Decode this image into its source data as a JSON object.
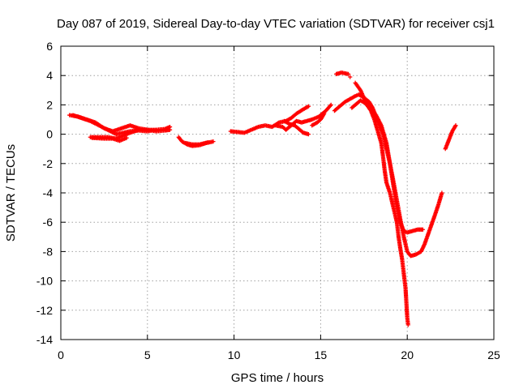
{
  "chart_data": {
    "type": "scatter",
    "title": "Day 087 of 2019, Sidereal Day-to-day VTEC variation (SDTVAR) for receiver csj1",
    "xlabel": "GPS time / hours",
    "ylabel": "SDTVAR / TECUs",
    "xlim": [
      0,
      25
    ],
    "ylim": [
      -14,
      6
    ],
    "xticks": [
      "0",
      "5",
      "10",
      "15",
      "20",
      "25"
    ],
    "yticks": [
      "-14",
      "-12",
      "-10",
      "-8",
      "-6",
      "-4",
      "-2",
      "0",
      "2",
      "4",
      "6"
    ],
    "grid": true,
    "marker": "+",
    "color": "#ff0000",
    "series": [
      {
        "segments": [
          [
            [
              0.5,
              1.3
            ],
            [
              1.0,
              1.2
            ],
            [
              1.5,
              1.0
            ],
            [
              2.0,
              0.8
            ],
            [
              2.5,
              0.4
            ],
            [
              3.0,
              0.2
            ],
            [
              3.5,
              0.4
            ],
            [
              4.0,
              0.6
            ],
            [
              4.5,
              0.4
            ],
            [
              5.0,
              0.3
            ],
            [
              5.5,
              0.3
            ],
            [
              6.0,
              0.35
            ],
            [
              6.3,
              0.5
            ]
          ],
          [
            [
              0.7,
              1.3
            ],
            [
              1.2,
              1.1
            ],
            [
              1.7,
              0.9
            ],
            [
              2.2,
              0.6
            ],
            [
              2.7,
              0.3
            ],
            [
              3.2,
              0.0
            ],
            [
              3.6,
              0.1
            ],
            [
              4.0,
              0.2
            ],
            [
              4.5,
              0.25
            ],
            [
              5.0,
              0.2
            ],
            [
              5.5,
              0.3
            ]
          ],
          [
            [
              1.7,
              -0.2
            ],
            [
              2.2,
              -0.2
            ],
            [
              2.7,
              -0.2
            ],
            [
              3.2,
              -0.3
            ],
            [
              3.6,
              -0.1
            ],
            [
              4.0,
              0.1
            ],
            [
              4.5,
              0.3
            ],
            [
              5.0,
              0.3
            ],
            [
              5.5,
              0.2
            ],
            [
              6.0,
              0.25
            ],
            [
              6.3,
              0.3
            ]
          ],
          [
            [
              1.8,
              -0.25
            ],
            [
              2.5,
              -0.3
            ],
            [
              3.0,
              -0.3
            ],
            [
              3.4,
              -0.45
            ],
            [
              3.8,
              -0.25
            ]
          ],
          [
            [
              6.8,
              -0.2
            ],
            [
              7.0,
              -0.5
            ],
            [
              7.3,
              -0.7
            ],
            [
              7.6,
              -0.8
            ],
            [
              8.0,
              -0.75
            ],
            [
              8.4,
              -0.6
            ],
            [
              8.8,
              -0.5
            ]
          ],
          [
            [
              7.2,
              -0.6
            ],
            [
              7.6,
              -0.7
            ],
            [
              8.0,
              -0.7
            ],
            [
              8.5,
              -0.55
            ]
          ],
          [
            [
              9.8,
              0.2
            ],
            [
              10.2,
              0.15
            ],
            [
              10.6,
              0.1
            ],
            [
              11.0,
              0.3
            ],
            [
              11.4,
              0.5
            ],
            [
              11.8,
              0.6
            ],
            [
              12.2,
              0.5
            ],
            [
              12.6,
              0.8
            ],
            [
              13.0,
              0.9
            ],
            [
              13.3,
              1.1
            ],
            [
              13.6,
              1.4
            ],
            [
              14.0,
              1.7
            ],
            [
              14.3,
              1.9
            ]
          ],
          [
            [
              12.4,
              0.6
            ],
            [
              12.8,
              0.5
            ],
            [
              13.0,
              0.3
            ],
            [
              13.3,
              0.6
            ],
            [
              13.6,
              0.9
            ],
            [
              13.9,
              0.8
            ],
            [
              14.2,
              0.9
            ],
            [
              14.5,
              1.0
            ],
            [
              14.9,
              1.2
            ],
            [
              15.3,
              1.6
            ],
            [
              15.6,
              2.0
            ]
          ],
          [
            [
              12.9,
              0.9
            ],
            [
              13.2,
              0.7
            ],
            [
              13.5,
              0.6
            ],
            [
              13.8,
              0.3
            ],
            [
              14.0,
              0.1
            ],
            [
              14.3,
              0.0
            ]
          ],
          [
            [
              14.5,
              0.6
            ],
            [
              14.8,
              0.8
            ],
            [
              15.0,
              1.0
            ],
            [
              15.2,
              1.4
            ]
          ],
          [
            [
              15.9,
              4.1
            ],
            [
              16.2,
              4.2
            ],
            [
              16.6,
              4.1
            ]
          ],
          [
            [
              15.8,
              1.6
            ],
            [
              16.1,
              1.9
            ],
            [
              16.4,
              2.2
            ],
            [
              16.7,
              2.4
            ],
            [
              17.0,
              2.6
            ],
            [
              17.2,
              2.7
            ],
            [
              17.5,
              2.5
            ],
            [
              17.8,
              2.2
            ],
            [
              18.0,
              1.8
            ],
            [
              18.2,
              1.2
            ],
            [
              18.4,
              0.6
            ],
            [
              18.6,
              0.0
            ],
            [
              18.8,
              -1.0
            ],
            [
              19.0,
              -2.0
            ],
            [
              19.2,
              -3.2
            ],
            [
              19.4,
              -4.5
            ],
            [
              19.6,
              -5.8
            ],
            [
              19.8,
              -7.0
            ],
            [
              20.0,
              -8.0
            ],
            [
              20.2,
              -8.3
            ],
            [
              20.5,
              -8.2
            ],
            [
              20.8,
              -8.0
            ],
            [
              21.0,
              -7.5
            ],
            [
              21.3,
              -6.5
            ],
            [
              21.6,
              -5.5
            ],
            [
              21.8,
              -4.8
            ],
            [
              22.0,
              -4.0
            ]
          ],
          [
            [
              16.8,
              1.8
            ],
            [
              17.0,
              2.0
            ],
            [
              17.3,
              2.3
            ],
            [
              17.6,
              2.1
            ],
            [
              17.9,
              1.6
            ],
            [
              18.1,
              1.0
            ],
            [
              18.3,
              0.2
            ],
            [
              18.5,
              -0.6
            ],
            [
              18.6,
              -1.5
            ],
            [
              18.7,
              -2.5
            ],
            [
              18.8,
              -3.3
            ],
            [
              19.0,
              -4.0
            ],
            [
              19.2,
              -5.0
            ],
            [
              19.4,
              -6.0
            ],
            [
              19.5,
              -7.0
            ],
            [
              19.6,
              -7.8
            ],
            [
              19.7,
              -8.5
            ],
            [
              19.8,
              -9.5
            ],
            [
              19.9,
              -10.5
            ],
            [
              19.95,
              -11.5
            ],
            [
              20.0,
              -12.5
            ],
            [
              20.05,
              -13.0
            ]
          ],
          [
            [
              17.0,
              3.5
            ],
            [
              17.3,
              3.0
            ],
            [
              17.6,
              2.2
            ],
            [
              17.9,
              1.7
            ],
            [
              18.2,
              1.3
            ],
            [
              18.5,
              0.6
            ],
            [
              18.8,
              -0.6
            ],
            [
              19.0,
              -2.0
            ],
            [
              19.2,
              -3.5
            ],
            [
              19.4,
              -5.0
            ],
            [
              19.6,
              -6.0
            ],
            [
              19.8,
              -6.6
            ],
            [
              20.0,
              -6.7
            ],
            [
              20.3,
              -6.6
            ],
            [
              20.6,
              -6.5
            ],
            [
              20.9,
              -6.5
            ]
          ],
          [
            [
              16.7,
              3.9
            ]
          ],
          [
            [
              22.2,
              -1.0
            ],
            [
              22.4,
              -0.4
            ],
            [
              22.6,
              0.2
            ],
            [
              22.8,
              0.6
            ]
          ]
        ]
      }
    ]
  }
}
